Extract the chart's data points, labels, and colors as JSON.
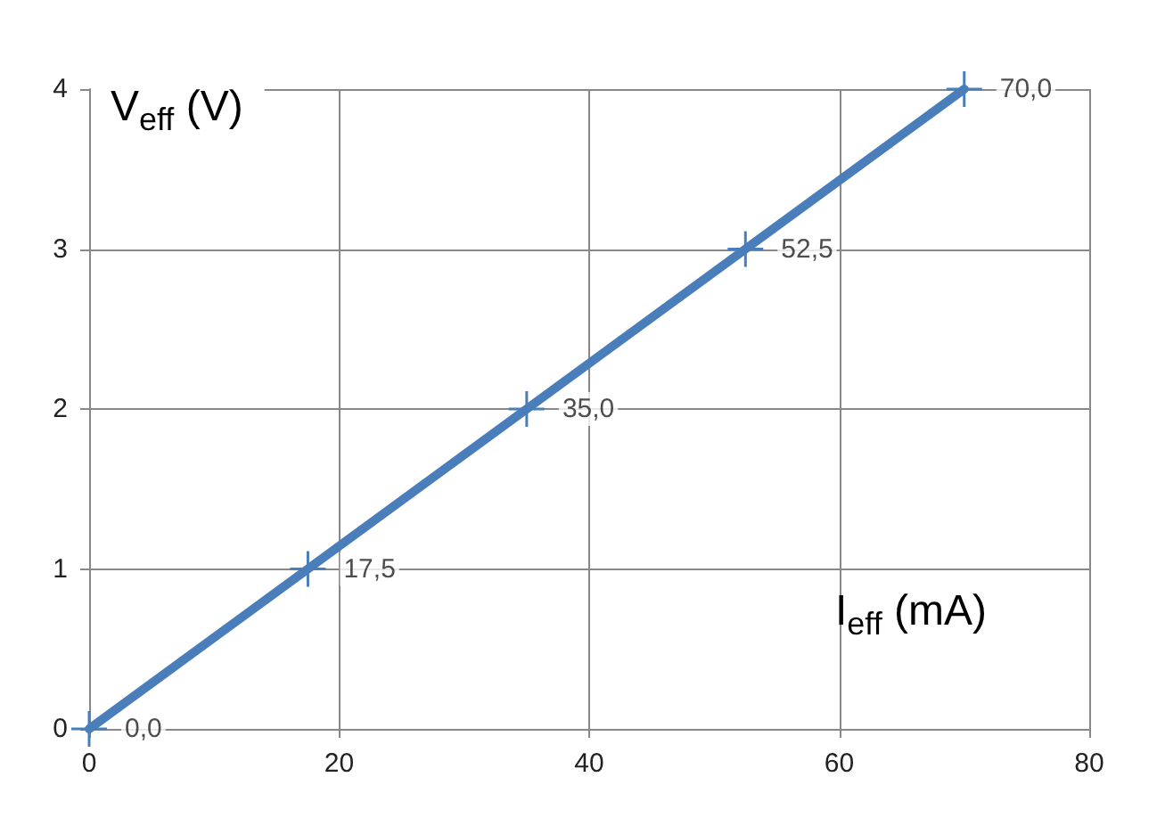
{
  "chart_data": {
    "type": "line",
    "xlabel": "I$_{eff}$ (mA)",
    "ylabel": "V$_{eff}$ (V)",
    "x": [
      0,
      17.5,
      35,
      52.5,
      70
    ],
    "series": [
      {
        "color": "#4a7ebb",
        "values": [
          0,
          1,
          2,
          3,
          4
        ]
      }
    ],
    "annotations": [
      {
        "text": "0,0",
        "x": 0,
        "y": 0
      },
      {
        "text": "17,5",
        "x": 17.5,
        "y": 1
      },
      {
        "text": "35,0",
        "x": 35,
        "y": 2
      },
      {
        "text": "52,5",
        "x": 52.5,
        "y": 3
      },
      {
        "text": "70,0",
        "x": 70,
        "y": 4
      }
    ],
    "xlim": [
      0,
      80
    ],
    "xticks": [
      0,
      20,
      40,
      60,
      80
    ],
    "ylim": [
      0,
      4
    ],
    "yticks": [
      0,
      1,
      2,
      3,
      4
    ],
    "grid": true,
    "marker": "cross",
    "line_style": "solid"
  }
}
